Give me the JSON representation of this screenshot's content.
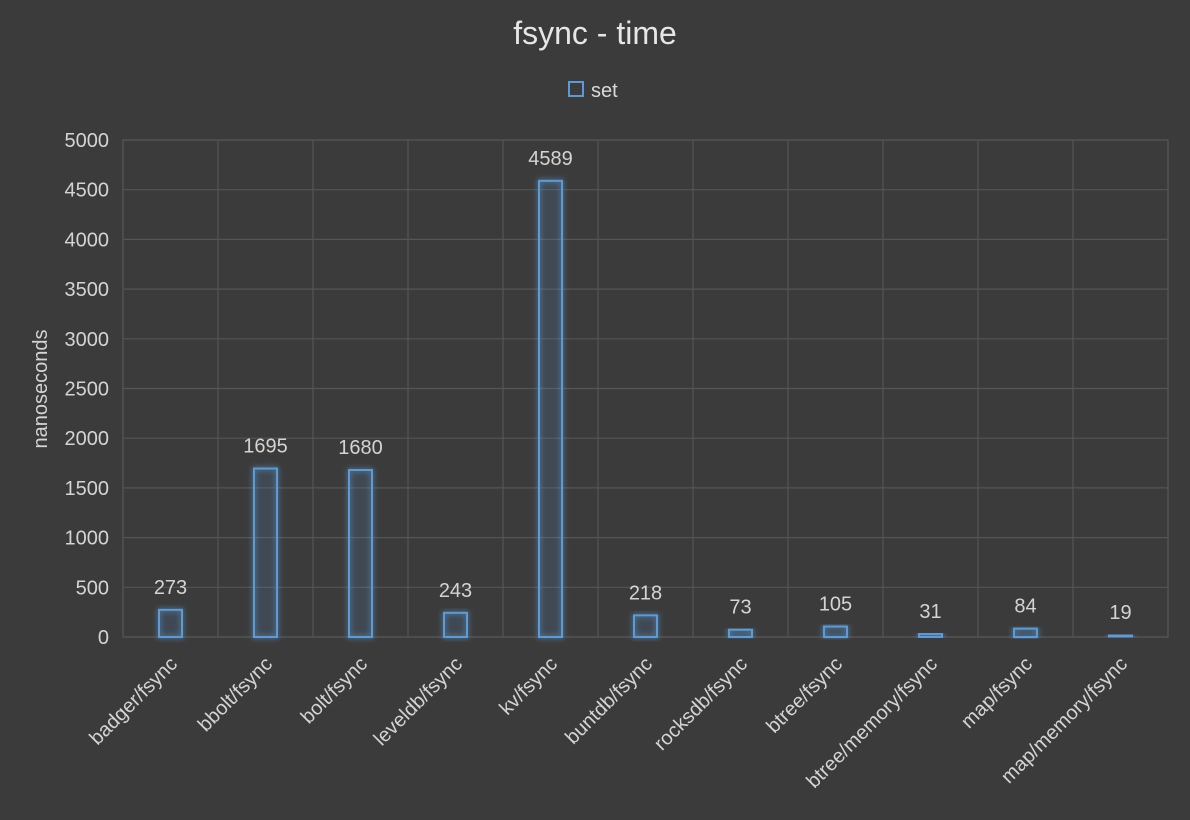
{
  "chart_data": {
    "type": "bar",
    "title": "fsync - time",
    "xlabel": "",
    "ylabel": "nanoseconds",
    "categories": [
      "badger/fsync",
      "bbolt/fsync",
      "bolt/fsync",
      "leveldb/fsync",
      "kv/fsync",
      "buntdb/fsync",
      "rocksdb/fsync",
      "btree/fsync",
      "btree/memory/fsync",
      "map/fsync",
      "map/memory/fsync"
    ],
    "series": [
      {
        "name": "set",
        "values": [
          273,
          1695,
          1680,
          243,
          4589,
          218,
          73,
          105,
          31,
          84,
          19
        ],
        "color": "#5b9bd5"
      }
    ],
    "ylim": [
      0,
      5000
    ],
    "yticks": [
      0,
      500,
      1000,
      1500,
      2000,
      2500,
      3000,
      3500,
      4000,
      4500,
      5000
    ],
    "grid": true,
    "legend_position": "top"
  }
}
